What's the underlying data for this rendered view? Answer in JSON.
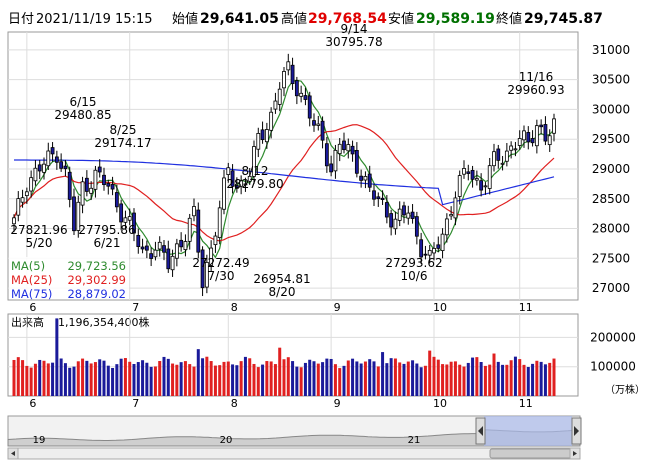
{
  "header": {
    "date_label": "日付",
    "date": "2021/11/19 15:15",
    "open_label": "始値",
    "open": "29,641.05",
    "high_label": "高値",
    "high": "29,768.54",
    "low_label": "安値",
    "low": "29,589.19",
    "close_label": "終値",
    "close": "29,745.87"
  },
  "colors": {
    "up_candle": "#ffffff",
    "down_candle": "#1a1a9a",
    "ma5": "#2e8b2e",
    "ma25": "#e02020",
    "ma75": "#2030e0",
    "volume_up": "#e02020",
    "volume_down": "#1a1a9a",
    "high_value": "#e00000",
    "low_value": "#007000"
  },
  "chart_data": {
    "type": "candlestick",
    "months": [
      "6",
      "7",
      "8",
      "9",
      "10",
      "11"
    ],
    "ylim": [
      26800,
      31300
    ],
    "yticks": [
      27000,
      27500,
      28000,
      28500,
      29000,
      29500,
      30000,
      30500,
      31000
    ],
    "ma_legend": [
      {
        "name": "MA(5)",
        "value": "29,723.56",
        "key": "ma5"
      },
      {
        "name": "MA(25)",
        "value": "29,302.99",
        "key": "ma25"
      },
      {
        "name": "MA(75)",
        "value": "28,879.02",
        "key": "ma75"
      }
    ],
    "annotations": [
      {
        "date": "6/15",
        "value": "29480.85",
        "i": 10
      },
      {
        "date": "8/25",
        "value": "29174.17",
        "i": 50
      },
      {
        "date": "8/12",
        "value": "28279.80",
        "i": 42
      },
      {
        "date": "9/14",
        "value": "30795.78",
        "i": 64
      },
      {
        "date": "11/16",
        "value": "29960.93",
        "i": 122
      },
      {
        "date": "5/20",
        "value": "27821.96",
        "i": 0
      },
      {
        "date": "6/21",
        "value": "27795.86",
        "i": 14
      },
      {
        "date": "7/30",
        "value": "27272.49",
        "i": 36
      },
      {
        "date": "8/20",
        "value": "26954.81",
        "i": 44
      },
      {
        "date": "10/6",
        "value": "27293.62",
        "i": 97
      }
    ],
    "volume_label": "出来高",
    "volume_value": "1,196,354,400株",
    "volume_yticks": [
      100000,
      200000
    ],
    "volume_unit": "（万株）",
    "volume_ylim": [
      0,
      280000
    ],
    "navigator_labels": [
      "19",
      "20",
      "21"
    ]
  }
}
